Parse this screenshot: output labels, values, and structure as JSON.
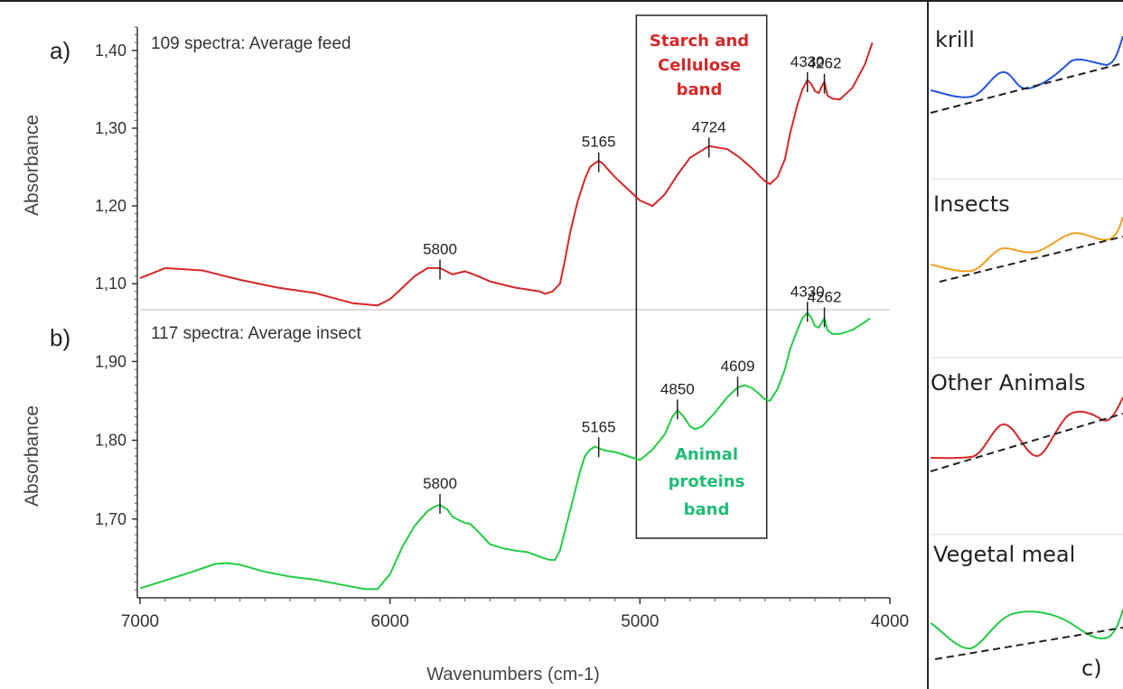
{
  "chart_data": [
    {
      "type": "line",
      "panel_label": "a)",
      "annotation": "109 spectra: Average feed",
      "xlabel": "",
      "ylabel": "Absorbance",
      "xlim": [
        7000,
        4000
      ],
      "ylim": [
        1.07,
        1.43
      ],
      "y_ticks": [
        1.1,
        1.2,
        1.3,
        1.4
      ],
      "y_tick_labels": [
        "1,10",
        "1,20",
        "1,30",
        "1,40"
      ],
      "series": [
        {
          "color": "#d62728",
          "x": [
            7000,
            6900,
            6750,
            6600,
            6450,
            6300,
            6150,
            6050,
            6000,
            5950,
            5900,
            5850,
            5800,
            5750,
            5700,
            5650,
            5600,
            5500,
            5400,
            5380,
            5350,
            5320,
            5300,
            5280,
            5250,
            5220,
            5200,
            5180,
            5165,
            5150,
            5100,
            5050,
            5000,
            4950,
            4900,
            4850,
            4800,
            4724,
            4650,
            4600,
            4550,
            4520,
            4500,
            4480,
            4450,
            4420,
            4400,
            4370,
            4350,
            4330,
            4315,
            4300,
            4285,
            4275,
            4262,
            4250,
            4230,
            4200,
            4150,
            4100,
            4070
          ],
          "y": [
            1.107,
            1.12,
            1.117,
            1.105,
            1.095,
            1.088,
            1.075,
            1.072,
            1.08,
            1.095,
            1.11,
            1.12,
            1.12,
            1.112,
            1.116,
            1.11,
            1.103,
            1.095,
            1.09,
            1.087,
            1.09,
            1.1,
            1.13,
            1.165,
            1.205,
            1.235,
            1.25,
            1.255,
            1.258,
            1.255,
            1.237,
            1.222,
            1.207,
            1.2,
            1.215,
            1.24,
            1.262,
            1.277,
            1.273,
            1.262,
            1.248,
            1.238,
            1.232,
            1.228,
            1.237,
            1.26,
            1.292,
            1.33,
            1.35,
            1.362,
            1.357,
            1.348,
            1.345,
            1.352,
            1.36,
            1.342,
            1.338,
            1.337,
            1.352,
            1.382,
            1.41
          ]
        }
      ],
      "peak_labels": [
        {
          "x": 5800,
          "y": 1.117,
          "label": "5800"
        },
        {
          "x": 5165,
          "y": 1.255,
          "label": "5165"
        },
        {
          "x": 4724,
          "y": 1.274,
          "label": "4724"
        },
        {
          "x": 4330,
          "y": 1.358,
          "label": "4330"
        },
        {
          "x": 4262,
          "y": 1.356,
          "label": "4262"
        }
      ]
    },
    {
      "type": "line",
      "panel_label": "b)",
      "annotation": "117 spectra: Average insect",
      "xlabel": "Wavenumbers (cm-1)",
      "ylabel": "Absorbance",
      "xlim": [
        7000,
        4000
      ],
      "ylim": [
        1.6,
        1.96
      ],
      "x_ticks": [
        7000,
        6000,
        5000,
        4000
      ],
      "x_tick_labels": [
        "7000",
        "6000",
        "5000",
        "4000"
      ],
      "y_ticks": [
        1.7,
        1.8,
        1.9
      ],
      "y_tick_labels": [
        "1,70",
        "1,80",
        "1,90"
      ],
      "series": [
        {
          "color": "#22cc44",
          "x": [
            7000,
            6900,
            6800,
            6700,
            6650,
            6600,
            6500,
            6400,
            6300,
            6200,
            6100,
            6050,
            6000,
            5950,
            5900,
            5850,
            5820,
            5800,
            5770,
            5750,
            5720,
            5700,
            5680,
            5650,
            5600,
            5550,
            5500,
            5450,
            5400,
            5380,
            5360,
            5340,
            5320,
            5300,
            5280,
            5260,
            5240,
            5220,
            5200,
            5180,
            5165,
            5140,
            5100,
            5050,
            5000,
            4950,
            4900,
            4870,
            4850,
            4830,
            4800,
            4780,
            4750,
            4700,
            4650,
            4609,
            4580,
            4550,
            4520,
            4500,
            4480,
            4450,
            4420,
            4400,
            4370,
            4350,
            4330,
            4315,
            4300,
            4285,
            4275,
            4262,
            4250,
            4230,
            4200,
            4150,
            4100,
            4080
          ],
          "y": [
            1.612,
            1.622,
            1.632,
            1.643,
            1.644,
            1.642,
            1.633,
            1.627,
            1.623,
            1.617,
            1.611,
            1.611,
            1.63,
            1.665,
            1.692,
            1.71,
            1.716,
            1.718,
            1.712,
            1.703,
            1.698,
            1.695,
            1.694,
            1.685,
            1.668,
            1.663,
            1.66,
            1.658,
            1.652,
            1.65,
            1.648,
            1.648,
            1.66,
            1.685,
            1.71,
            1.735,
            1.76,
            1.78,
            1.788,
            1.792,
            1.79,
            1.787,
            1.785,
            1.78,
            1.775,
            1.788,
            1.808,
            1.83,
            1.838,
            1.832,
            1.818,
            1.814,
            1.818,
            1.835,
            1.855,
            1.867,
            1.87,
            1.866,
            1.858,
            1.852,
            1.85,
            1.865,
            1.89,
            1.915,
            1.94,
            1.955,
            1.962,
            1.956,
            1.945,
            1.943,
            1.948,
            1.955,
            1.94,
            1.935,
            1.935,
            1.94,
            1.95,
            1.955
          ]
        }
      ],
      "peak_labels": [
        {
          "x": 5800,
          "y": 1.718,
          "label": "5800"
        },
        {
          "x": 5165,
          "y": 1.79,
          "label": "5165"
        },
        {
          "x": 4850,
          "y": 1.838,
          "label": "4850"
        },
        {
          "x": 4609,
          "y": 1.867,
          "label": "4609"
        },
        {
          "x": 4330,
          "y": 1.962,
          "label": "4330"
        },
        {
          "x": 4262,
          "y": 1.955,
          "label": "4262"
        }
      ]
    }
  ],
  "bands": {
    "x_range": [
      5000,
      4500
    ],
    "top_label": [
      "Starch and",
      "Cellulose",
      "band"
    ],
    "top_color": "#d62728",
    "bottom_label": [
      "Animal",
      "proteins",
      "band"
    ],
    "bottom_color": "#22bb77"
  },
  "panel_c": {
    "label": "c)",
    "items": [
      {
        "name": "krill",
        "color": "#2255dd"
      },
      {
        "name": "Insects",
        "color": "#f0a020"
      },
      {
        "name": "Other Animals",
        "color": "#d62728"
      },
      {
        "name": "Vegetal meal",
        "color": "#22cc44"
      }
    ],
    "baseline_style": "dashed"
  }
}
